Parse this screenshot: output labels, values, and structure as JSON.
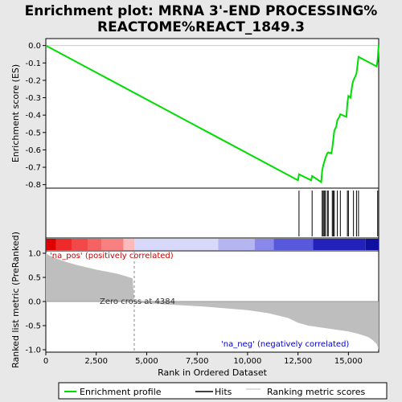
{
  "chart_data": {
    "type": "line",
    "title_lines": [
      "Enrichment plot: MRNA 3'-END PROCESSING%",
      "REACTOME%REACT_1849.3"
    ],
    "xlabel": "Rank in Ordered Dataset",
    "ylabel_top": "Enrichment score (ES)",
    "ylabel_bottom": "Ranked list metric (PreRanked)",
    "xlim": [
      0,
      16500
    ],
    "xticks": [
      0,
      2500,
      5000,
      7500,
      10000,
      12500,
      15000
    ],
    "xtick_labels": [
      "0",
      "2,500",
      "5,000",
      "7,500",
      "10,000",
      "12,500",
      "15,000"
    ],
    "es_ylim": [
      -0.82,
      0.04
    ],
    "es_yticks": [
      0.0,
      -0.1,
      -0.2,
      -0.3,
      -0.4,
      -0.5,
      -0.6,
      -0.7,
      -0.8
    ],
    "es_ytick_labels": [
      "0.0",
      "-0.1",
      "-0.2",
      "-0.3",
      "-0.4",
      "-0.5",
      "-0.6",
      "-0.7",
      "-0.8"
    ],
    "metric_ylim": [
      -1.05,
      1.05
    ],
    "metric_yticks": [
      1.0,
      0.5,
      0.0,
      -0.5,
      -1.0
    ],
    "metric_ytick_labels": [
      "1.0",
      "0.5",
      "0.0",
      "-0.5",
      "-1.0"
    ],
    "zero_cross": 4384,
    "zero_cross_label": "Zero cross at 4384",
    "pos_label": "'na_pos' (positively correlated)",
    "neg_label": "'na_neg' (negatively correlated)",
    "es_curve": {
      "x": [
        0,
        12500,
        12550,
        13150,
        13200,
        13650,
        13700,
        13750,
        13800,
        13850,
        13950,
        14000,
        14150,
        14200,
        14250,
        14300,
        14400,
        14450,
        14550,
        14600,
        14900,
        14950,
        15000,
        15100,
        15200,
        15250,
        15350,
        15400,
        15500,
        16400,
        16450,
        16500
      ],
      "y": [
        0.0,
        -0.775,
        -0.74,
        -0.775,
        -0.75,
        -0.785,
        -0.72,
        -0.69,
        -0.67,
        -0.65,
        -0.62,
        -0.615,
        -0.62,
        -0.59,
        -0.54,
        -0.49,
        -0.465,
        -0.43,
        -0.41,
        -0.395,
        -0.41,
        -0.33,
        -0.29,
        -0.3,
        -0.22,
        -0.2,
        -0.175,
        -0.16,
        -0.065,
        -0.12,
        -0.08,
        0.005
      ]
    },
    "hits": [
      12550,
      13200,
      13700,
      13750,
      13800,
      13850,
      13950,
      14000,
      14200,
      14250,
      14300,
      14450,
      14600,
      14950,
      15000,
      15250,
      15400,
      15500,
      16450,
      16500
    ],
    "metric_curve": {
      "x": [
        0,
        200,
        600,
        1000,
        1500,
        2000,
        2500,
        3000,
        3500,
        4000,
        4300,
        4384,
        4400,
        6000,
        8000,
        10000,
        11000,
        12000,
        12500,
        13000,
        14000,
        15000,
        15500,
        16000,
        16200,
        16400,
        16500
      ],
      "y": [
        1.0,
        0.95,
        0.88,
        0.82,
        0.76,
        0.71,
        0.66,
        0.62,
        0.58,
        0.52,
        0.48,
        0.0,
        -0.02,
        -0.06,
        -0.11,
        -0.18,
        -0.24,
        -0.34,
        -0.44,
        -0.5,
        -0.56,
        -0.62,
        -0.67,
        -0.74,
        -0.8,
        -0.88,
        -1.0
      ]
    },
    "legend": [
      "Enrichment profile",
      "Hits",
      "Ranking metric scores"
    ],
    "colors": {
      "es_line": "#00dd00",
      "hit": "#000000",
      "metric_fill": "#bebebe",
      "zero_line": "#999999",
      "plot_bg": "#ffffff",
      "page_bg": "#e8e8e8"
    },
    "heat_band": [
      {
        "x0": 0,
        "x1": 500,
        "color": "#dd0000"
      },
      {
        "x0": 500,
        "x1": 1300,
        "color": "#ee2a2a"
      },
      {
        "x0": 1300,
        "x1": 2100,
        "color": "#f34848"
      },
      {
        "x0": 2100,
        "x1": 2750,
        "color": "#f56262"
      },
      {
        "x0": 2750,
        "x1": 3850,
        "color": "#f88080"
      },
      {
        "x0": 3850,
        "x1": 4384,
        "color": "#fcbaba"
      },
      {
        "x0": 4384,
        "x1": 8550,
        "color": "#d8d8fa"
      },
      {
        "x0": 8550,
        "x1": 10350,
        "color": "#b5b5f2"
      },
      {
        "x0": 10350,
        "x1": 11300,
        "color": "#8888ea"
      },
      {
        "x0": 11300,
        "x1": 13250,
        "color": "#5858dc"
      },
      {
        "x0": 13250,
        "x1": 15850,
        "color": "#2222bb"
      },
      {
        "x0": 15850,
        "x1": 16500,
        "color": "#1010a0"
      }
    ]
  }
}
